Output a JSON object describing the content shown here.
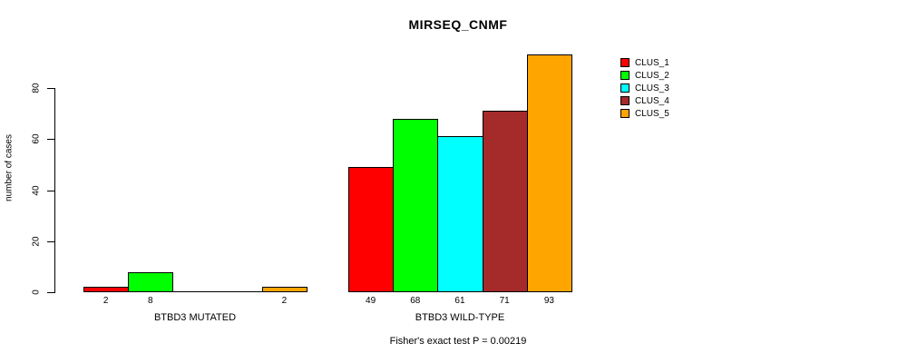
{
  "title": "MIRSEQ_CNMF",
  "chart_data": {
    "type": "bar",
    "title": "MIRSEQ_CNMF",
    "ylabel": "number of cases",
    "xlabel": "",
    "ylim": [
      0,
      93
    ],
    "yticks": [
      0,
      20,
      40,
      60,
      80
    ],
    "grid": false,
    "legend_position": "top-right",
    "legend_entries": [
      {
        "label": "CLUS_1",
        "color": "#FF0000"
      },
      {
        "label": "CLUS_2",
        "color": "#00FF00"
      },
      {
        "label": "CLUS_3",
        "color": "#00FFFF"
      },
      {
        "label": "CLUS_4",
        "color": "#A52A2A"
      },
      {
        "label": "CLUS_5",
        "color": "#FFA500"
      }
    ],
    "categories": [
      "BTBD3 MUTATED",
      "BTBD3 WILD-TYPE"
    ],
    "series": [
      {
        "name": "CLUS_1",
        "color": "#FF0000",
        "values": [
          2,
          49
        ]
      },
      {
        "name": "CLUS_2",
        "color": "#00FF00",
        "values": [
          8,
          68
        ]
      },
      {
        "name": "CLUS_3",
        "color": "#00FFFF",
        "values": [
          0,
          61
        ]
      },
      {
        "name": "CLUS_4",
        "color": "#A52A2A",
        "values": [
          0,
          71
        ]
      },
      {
        "name": "CLUS_5",
        "color": "#FFA500",
        "values": [
          2,
          93
        ]
      }
    ],
    "bar_value_labels": {
      "BTBD3 MUTATED": [
        "2",
        "8",
        "",
        "",
        "2"
      ],
      "BTBD3 WILD-TYPE": [
        "49",
        "68",
        "61",
        "71",
        "93"
      ]
    },
    "footer": "Fisher's exact test P = 0.00219",
    "axis_color": "#000000",
    "background_color": "#FFFFFF"
  }
}
